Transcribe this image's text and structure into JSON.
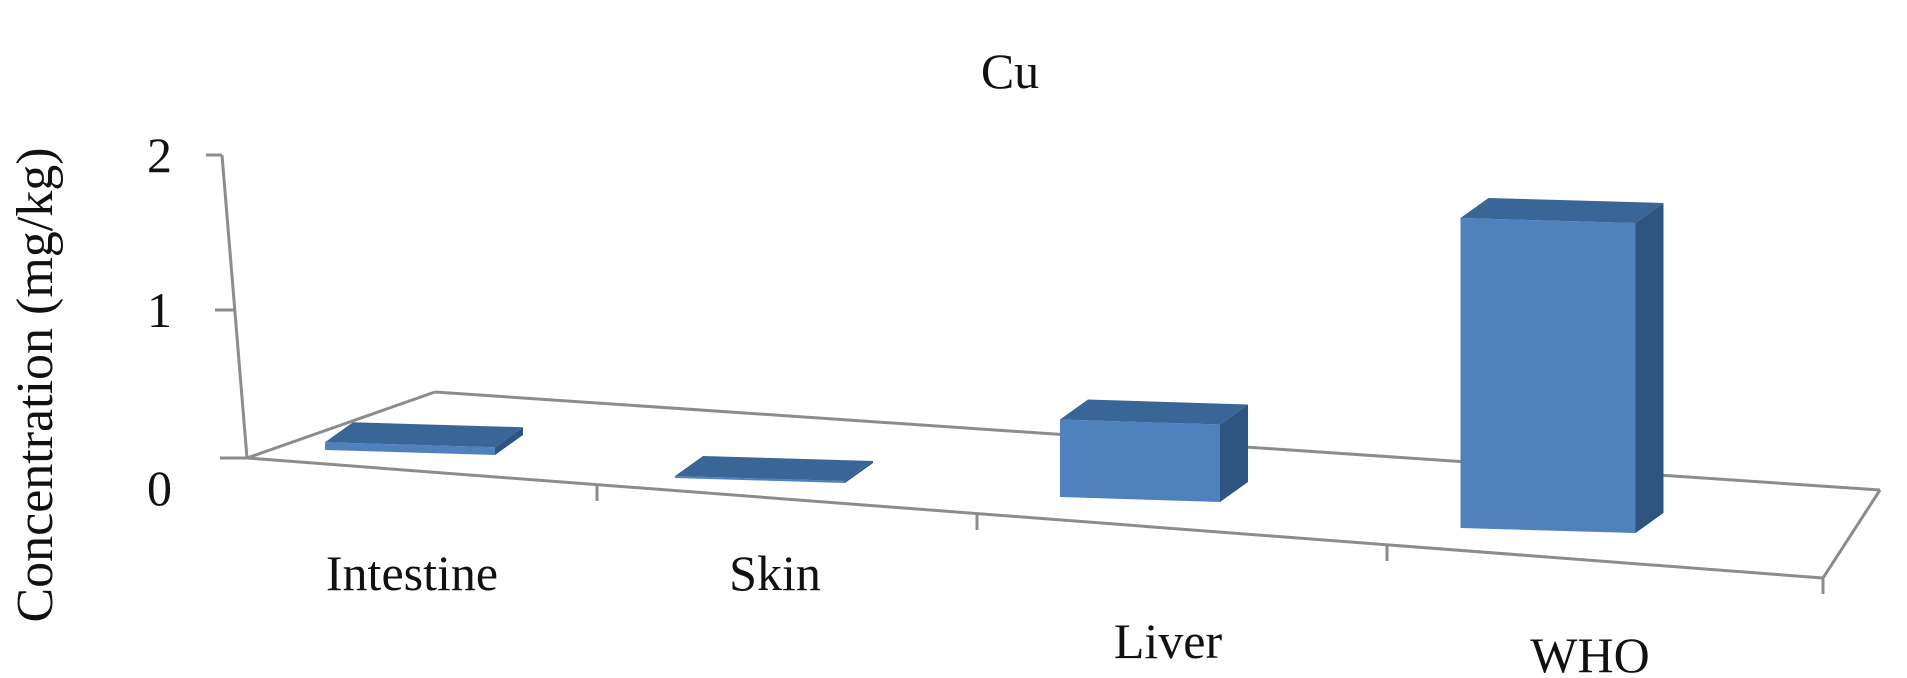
{
  "chart_data": {
    "type": "bar",
    "title": "Cu",
    "xlabel": "",
    "ylabel": "Concentration (mg/kg)",
    "categories": [
      "Intestine",
      "Skin",
      "Liver",
      "WHO"
    ],
    "values": [
      0.05,
      0.0,
      0.5,
      2.0
    ],
    "ylim": [
      0,
      2
    ],
    "yticks": [
      "0",
      "1",
      "2"
    ],
    "grid": false,
    "style": "3d-column"
  },
  "colors": {
    "bar_front": "#4f81bd",
    "bar_top": "#3a6597",
    "bar_side": "#2f5480",
    "axis": "#8c8c8c"
  }
}
